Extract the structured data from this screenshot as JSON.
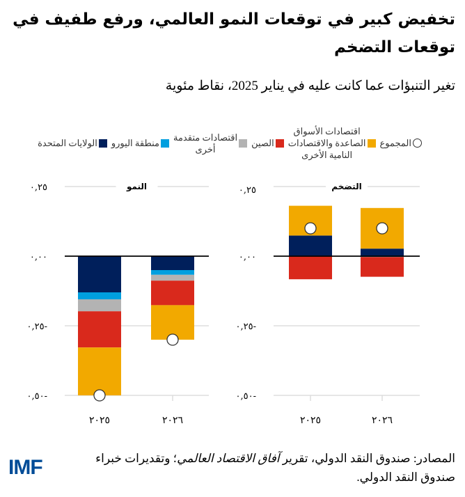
{
  "title": "تخفيض كبير في توقعات النمو العالمي، ورفع طفيف في توقعات التضخم",
  "subtitle": "تغير التنبؤات عما كانت عليه في يناير 2025، نقاط مئوية",
  "legend": [
    {
      "key": "total",
      "label": "المجموع",
      "marker": "circle",
      "color": "#ffffff"
    },
    {
      "key": "emde",
      "label": "اقتصادات الأسواق\nالصاعدة والاقتصادات\nالنامية الأخرى",
      "marker": "square",
      "color": "#f2a900"
    },
    {
      "key": "china",
      "label": "الصين",
      "marker": "square",
      "color": "#d9291c"
    },
    {
      "key": "other_adv",
      "label": "اقتصادات متقدمة\nأخرى",
      "marker": "square",
      "color": "#b3b3b3"
    },
    {
      "key": "euro",
      "label": "منطقة اليورو",
      "marker": "square",
      "color": "#009fdf"
    },
    {
      "key": "us",
      "label": "الولايات المتحدة",
      "marker": "square",
      "color": "#001f5b"
    }
  ],
  "chart_data": [
    {
      "type": "bar",
      "stacked": true,
      "title": "النمو",
      "categories": [
        "٢٠٢٥",
        "٢٠٢٦"
      ],
      "ylim": [
        -0.5,
        0.25
      ],
      "yticks": [
        {
          "value": 0.25,
          "label": "٠,٢٥"
        },
        {
          "value": 0,
          "label": "٠,٠٠"
        },
        {
          "value": -0.25,
          "label": "٠,٢٥-"
        },
        {
          "value": -0.5,
          "label": "٠,٥٠-"
        }
      ],
      "grid": true,
      "series": [
        {
          "name": "الولايات المتحدة",
          "key": "us",
          "values": [
            -0.13,
            -0.05
          ]
        },
        {
          "name": "منطقة اليورو",
          "key": "euro",
          "values": [
            -0.025,
            -0.017
          ]
        },
        {
          "name": "اقتصادات متقدمة أخرى",
          "key": "other_adv",
          "values": [
            -0.043,
            -0.021
          ]
        },
        {
          "name": "الصين",
          "key": "china",
          "values": [
            -0.13,
            -0.088
          ]
        },
        {
          "name": "اقتصادات الأسواق الصاعدة والاقتصادات النامية الأخرى",
          "key": "emde",
          "values": [
            -0.172,
            -0.124
          ]
        }
      ],
      "total": {
        "name": "المجموع",
        "values": [
          -0.5,
          -0.3
        ]
      }
    },
    {
      "type": "bar",
      "stacked": true,
      "title": "التضخم",
      "categories": [
        "٢٠٢٥",
        "٢٠٢٦"
      ],
      "ylim": [
        -0.5,
        0.25
      ],
      "yticks": [
        {
          "value": 0.25,
          "label": "٠,٢٥"
        },
        {
          "value": 0,
          "label": "٠,٠٠"
        },
        {
          "value": -0.25,
          "label": "٠,٢٥-"
        },
        {
          "value": -0.5,
          "label": "٠,٥٠-"
        }
      ],
      "grid": true,
      "series": [
        {
          "name": "الولايات المتحدة",
          "key": "us",
          "values": [
            0.074,
            0.027
          ]
        },
        {
          "name": "منطقة اليورو",
          "key": "euro",
          "values": [
            0,
            -0.003
          ]
        },
        {
          "name": "اقتصادات متقدمة أخرى",
          "key": "other_adv",
          "values": [
            0,
            0
          ]
        },
        {
          "name": "الصين",
          "key": "china",
          "values": [
            -0.083,
            -0.071
          ]
        },
        {
          "name": "اقتصادات الأسواق الصاعدة والاقتصادات النامية الأخرى",
          "key": "emde",
          "values": [
            0.107,
            0.146
          ]
        }
      ],
      "total": {
        "name": "المجموع",
        "values": [
          0.1,
          0.1
        ]
      }
    }
  ],
  "source": {
    "prefix": "المصادر: صندوق النقد الدولي، تقرير ",
    "italic": "آفاق الاقتصاد العالمي",
    "suffix": "؛ وتقديرات خبراء صندوق النقد الدولي."
  },
  "logo": "IMF"
}
